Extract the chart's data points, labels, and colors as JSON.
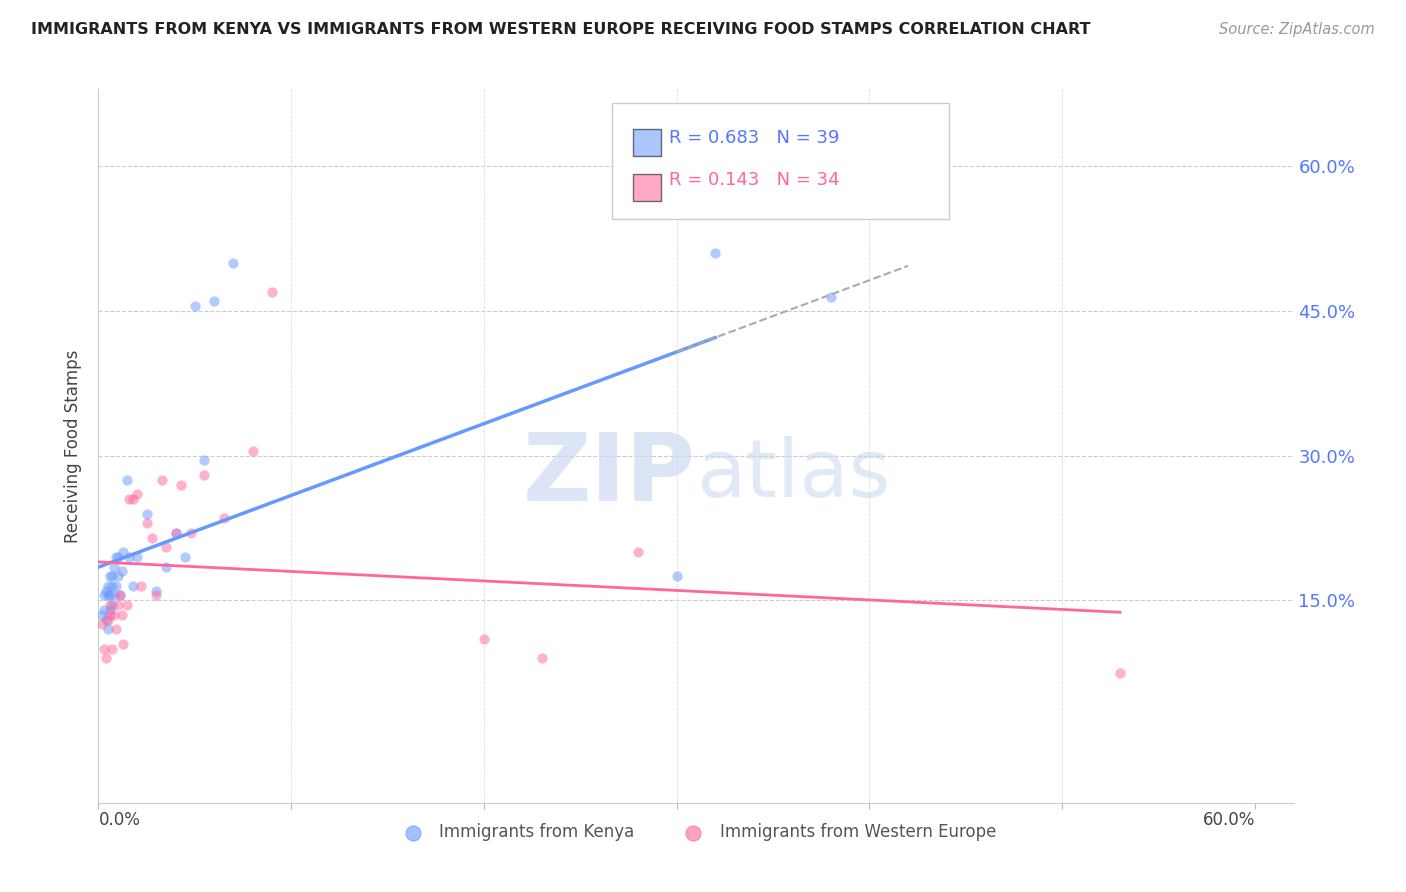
{
  "title": "IMMIGRANTS FROM KENYA VS IMMIGRANTS FROM WESTERN EUROPE RECEIVING FOOD STAMPS CORRELATION CHART",
  "source": "Source: ZipAtlas.com",
  "ylabel": "Receiving Food Stamps",
  "ytick_values": [
    0.15,
    0.3,
    0.45,
    0.6
  ],
  "xlim": [
    0.0,
    0.62
  ],
  "ylim": [
    -0.06,
    0.68
  ],
  "kenya_color": "#6699ff",
  "western_color": "#ff6699",
  "kenya_R": 0.683,
  "kenya_N": 39,
  "western_R": 0.143,
  "western_N": 34,
  "legend_label_kenya": "Immigrants from Kenya",
  "legend_label_western": "Immigrants from Western Europe",
  "watermark_zip": "ZIP",
  "watermark_atlas": "atlas",
  "kenya_x": [
    0.002,
    0.003,
    0.003,
    0.004,
    0.004,
    0.005,
    0.005,
    0.005,
    0.006,
    0.006,
    0.006,
    0.007,
    0.007,
    0.007,
    0.008,
    0.008,
    0.009,
    0.009,
    0.01,
    0.01,
    0.011,
    0.012,
    0.013,
    0.015,
    0.016,
    0.018,
    0.02,
    0.025,
    0.03,
    0.035,
    0.04,
    0.045,
    0.05,
    0.055,
    0.06,
    0.07,
    0.3,
    0.32,
    0.38
  ],
  "kenya_y": [
    0.135,
    0.14,
    0.155,
    0.13,
    0.16,
    0.12,
    0.155,
    0.165,
    0.14,
    0.155,
    0.175,
    0.145,
    0.165,
    0.175,
    0.155,
    0.185,
    0.165,
    0.195,
    0.175,
    0.195,
    0.155,
    0.18,
    0.2,
    0.275,
    0.195,
    0.165,
    0.195,
    0.24,
    0.16,
    0.185,
    0.22,
    0.195,
    0.455,
    0.295,
    0.46,
    0.5,
    0.175,
    0.51,
    0.465
  ],
  "western_x": [
    0.002,
    0.003,
    0.004,
    0.005,
    0.006,
    0.006,
    0.007,
    0.008,
    0.009,
    0.01,
    0.011,
    0.012,
    0.013,
    0.015,
    0.016,
    0.018,
    0.02,
    0.022,
    0.025,
    0.028,
    0.03,
    0.033,
    0.035,
    0.04,
    0.043,
    0.048,
    0.055,
    0.065,
    0.08,
    0.09,
    0.2,
    0.23,
    0.28,
    0.53
  ],
  "western_y": [
    0.125,
    0.1,
    0.09,
    0.13,
    0.135,
    0.145,
    0.1,
    0.135,
    0.12,
    0.145,
    0.155,
    0.135,
    0.105,
    0.145,
    0.255,
    0.255,
    0.26,
    0.165,
    0.23,
    0.215,
    0.155,
    0.275,
    0.205,
    0.22,
    0.27,
    0.22,
    0.28,
    0.235,
    0.305,
    0.47,
    0.11,
    0.09,
    0.2,
    0.075
  ]
}
